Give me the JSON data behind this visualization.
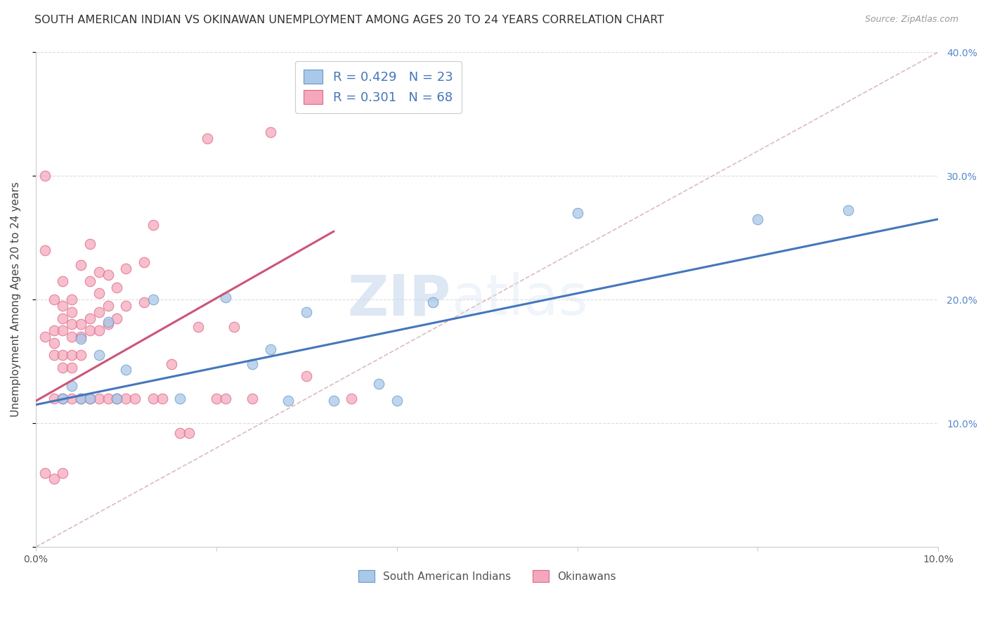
{
  "title": "SOUTH AMERICAN INDIAN VS OKINAWAN UNEMPLOYMENT AMONG AGES 20 TO 24 YEARS CORRELATION CHART",
  "source": "Source: ZipAtlas.com",
  "ylabel": "Unemployment Among Ages 20 to 24 years",
  "xlim": [
    0,
    0.1
  ],
  "ylim": [
    0,
    0.4
  ],
  "blue_R": 0.429,
  "blue_N": 23,
  "pink_R": 0.301,
  "pink_N": 68,
  "blue_dot_color": "#aac8e8",
  "pink_dot_color": "#f5a8bc",
  "blue_edge_color": "#6699cc",
  "pink_edge_color": "#dd6688",
  "blue_line_color": "#4477bb",
  "pink_line_color": "#cc5577",
  "ref_line_color": "#ddbbbb",
  "right_tick_color": "#5588cc",
  "legend_label_blue": "South American Indians",
  "legend_label_pink": "Okinawans",
  "watermark_zip": "ZIP",
  "watermark_atlas": "atlas",
  "blue_scatter_x": [
    0.003,
    0.004,
    0.005,
    0.005,
    0.006,
    0.007,
    0.008,
    0.009,
    0.01,
    0.013,
    0.016,
    0.021,
    0.024,
    0.026,
    0.028,
    0.03,
    0.033,
    0.038,
    0.04,
    0.044,
    0.06,
    0.08,
    0.09
  ],
  "blue_scatter_y": [
    0.12,
    0.13,
    0.12,
    0.168,
    0.12,
    0.155,
    0.182,
    0.12,
    0.143,
    0.2,
    0.12,
    0.202,
    0.148,
    0.16,
    0.118,
    0.19,
    0.118,
    0.132,
    0.118,
    0.198,
    0.27,
    0.265,
    0.272
  ],
  "pink_scatter_x": [
    0.001,
    0.001,
    0.001,
    0.001,
    0.002,
    0.002,
    0.002,
    0.002,
    0.002,
    0.002,
    0.003,
    0.003,
    0.003,
    0.003,
    0.003,
    0.003,
    0.003,
    0.003,
    0.004,
    0.004,
    0.004,
    0.004,
    0.004,
    0.004,
    0.004,
    0.005,
    0.005,
    0.005,
    0.005,
    0.005,
    0.006,
    0.006,
    0.006,
    0.006,
    0.006,
    0.007,
    0.007,
    0.007,
    0.007,
    0.007,
    0.008,
    0.008,
    0.008,
    0.008,
    0.009,
    0.009,
    0.009,
    0.01,
    0.01,
    0.01,
    0.011,
    0.012,
    0.012,
    0.013,
    0.013,
    0.014,
    0.015,
    0.016,
    0.017,
    0.018,
    0.019,
    0.02,
    0.021,
    0.022,
    0.024,
    0.026,
    0.03,
    0.035
  ],
  "pink_scatter_y": [
    0.3,
    0.24,
    0.17,
    0.06,
    0.2,
    0.175,
    0.165,
    0.155,
    0.12,
    0.055,
    0.215,
    0.195,
    0.185,
    0.175,
    0.155,
    0.145,
    0.12,
    0.06,
    0.2,
    0.19,
    0.18,
    0.17,
    0.155,
    0.145,
    0.12,
    0.228,
    0.18,
    0.17,
    0.155,
    0.12,
    0.245,
    0.215,
    0.185,
    0.175,
    0.12,
    0.222,
    0.205,
    0.19,
    0.175,
    0.12,
    0.22,
    0.195,
    0.18,
    0.12,
    0.21,
    0.185,
    0.12,
    0.225,
    0.195,
    0.12,
    0.12,
    0.23,
    0.198,
    0.26,
    0.12,
    0.12,
    0.148,
    0.092,
    0.092,
    0.178,
    0.33,
    0.12,
    0.12,
    0.178,
    0.12,
    0.335,
    0.138,
    0.12
  ],
  "blue_trend_x0": 0.0,
  "blue_trend_y0": 0.115,
  "blue_trend_x1": 0.1,
  "blue_trend_y1": 0.265,
  "pink_trend_x0": 0.0,
  "pink_trend_y0": 0.118,
  "pink_trend_x1": 0.033,
  "pink_trend_y1": 0.255,
  "title_fontsize": 11.5,
  "axis_label_fontsize": 11,
  "tick_fontsize": 10,
  "legend_fontsize": 13,
  "dot_size": 110
}
